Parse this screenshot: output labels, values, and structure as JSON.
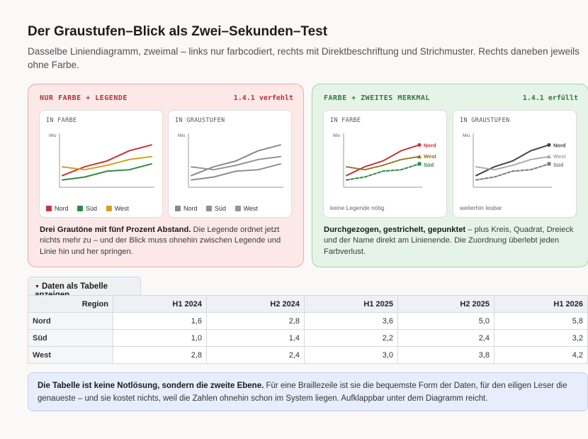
{
  "page": {
    "title": "Der Graustufen–Blick als Zwei–Sekunden–Test",
    "subtitle": "Dasselbe Liniendiagramm, zweimal – links nur farbcodiert, rechts mit Direktbeschriftung und Strichmuster. Rechts daneben jeweils ohne Farbe."
  },
  "colors": {
    "nord": "#c9333b",
    "sued": "#2e8b3e",
    "west": "#d4a020",
    "gray_dark": "#444444",
    "gray_mid": "#7a7a7a",
    "gray_light": "#a3a3a3"
  },
  "panels": {
    "bad": {
      "heading": "NUR FARBE + LEGENDE",
      "criterion": "1.4.1 verfehlt",
      "cards": [
        {
          "title": "IN FARBE",
          "axis_unit": "Mio"
        },
        {
          "title": "IN GRAUSTUFEN",
          "axis_unit": "Mio"
        }
      ],
      "legend": [
        "Nord",
        "Süd",
        "West"
      ],
      "desc_bold": "Drei Grautöne mit fünf Prozent Abstand.",
      "desc_rest": " Die Legende ordnet jetzt nichts mehr zu – und der Blick muss ohnehin zwischen Legende und Linie hin und her springen."
    },
    "good": {
      "heading": "FARBE + ZWEITES MERKMAL",
      "criterion": "1.4.1 erfüllt",
      "cards": [
        {
          "title": "IN FARBE",
          "axis_unit": "Mio",
          "note": "keine Legende nötig"
        },
        {
          "title": "IN GRAUSTUFEN",
          "axis_unit": "Mio",
          "note": "weiterhin lesbar"
        }
      ],
      "labels": [
        "Nord",
        "West",
        "Süd"
      ],
      "desc_bold": "Durchgezogen, gestrichelt, gepunktet",
      "desc_rest": " – plus Kreis, Quadrat, Dreieck und der Name direkt am Linienende. Die Zuordnung überlebt jeden Farbverlust."
    }
  },
  "chart_data": {
    "type": "line",
    "categories": [
      "H1 2024",
      "H2 2024",
      "H1 2025",
      "H2 2025",
      "H1 2026"
    ],
    "series": [
      {
        "name": "Nord",
        "values": [
          1.6,
          2.8,
          3.6,
          5.0,
          5.8
        ]
      },
      {
        "name": "Süd",
        "values": [
          1.0,
          1.4,
          2.2,
          2.4,
          3.2
        ]
      },
      {
        "name": "West",
        "values": [
          2.8,
          2.4,
          3.0,
          3.8,
          4.2
        ]
      }
    ],
    "ylabel": "Mio",
    "ylim": [
      0,
      7
    ]
  },
  "table": {
    "toggle_label": "Daten als Tabelle anzeigen",
    "headers": [
      "Region",
      "H1 2024",
      "H2 2024",
      "H1 2025",
      "H2 2025",
      "H1 2026"
    ],
    "rows": [
      [
        "Nord",
        "1,6",
        "2,8",
        "3,6",
        "5,0",
        "5,8"
      ],
      [
        "Süd",
        "1,0",
        "1,4",
        "2,2",
        "2,4",
        "3,2"
      ],
      [
        "West",
        "2,8",
        "2,4",
        "3,0",
        "3,8",
        "4,2"
      ]
    ]
  },
  "info": {
    "bold": "Die Tabelle ist keine Notlösung, sondern die zweite Ebene.",
    "rest": " Für eine Braillezeile ist sie die bequemste Form der Daten, für den eiligen Leser die genaueste – und sie kostet nichts, weil die Zahlen ohnehin schon im System liegen. Aufklappbar unter dem Diagramm reicht."
  }
}
